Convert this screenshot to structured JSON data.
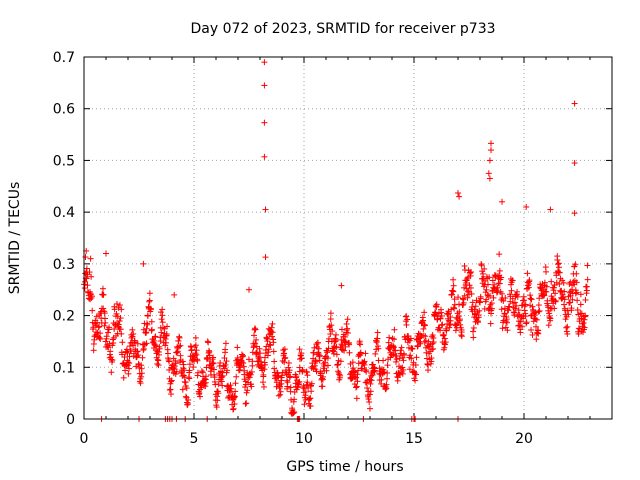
{
  "chart_data": {
    "type": "scatter",
    "title": "Day 072 of 2023, SRMTID for receiver p733",
    "xlabel": "GPS time / hours",
    "ylabel": "SRMTID / TECUs",
    "xlim": [
      0,
      24
    ],
    "ylim": [
      0,
      0.7
    ],
    "x_ticks": [
      0,
      5,
      10,
      15,
      20
    ],
    "y_ticks": [
      0,
      0.1,
      0.2,
      0.3,
      0.4,
      0.5,
      0.6,
      0.7
    ],
    "x_tick_labels": [
      "0",
      "5",
      "10",
      "15",
      "20"
    ],
    "y_tick_labels": [
      "0",
      "0.1",
      "0.2",
      "0.3",
      "0.4",
      "0.5",
      "0.6",
      "0.7"
    ],
    "grid": true,
    "marker": "plus",
    "color": "#ff0000",
    "trend": [
      {
        "x": 0.0,
        "y": 0.26
      },
      {
        "x": 0.5,
        "y": 0.2
      },
      {
        "x": 1.0,
        "y": 0.16
      },
      {
        "x": 1.5,
        "y": 0.17
      },
      {
        "x": 2.0,
        "y": 0.13
      },
      {
        "x": 2.5,
        "y": 0.12
      },
      {
        "x": 3.0,
        "y": 0.18
      },
      {
        "x": 3.5,
        "y": 0.15
      },
      {
        "x": 4.0,
        "y": 0.11
      },
      {
        "x": 4.5,
        "y": 0.09
      },
      {
        "x": 5.0,
        "y": 0.1
      },
      {
        "x": 5.5,
        "y": 0.09
      },
      {
        "x": 6.0,
        "y": 0.09
      },
      {
        "x": 6.5,
        "y": 0.07
      },
      {
        "x": 7.0,
        "y": 0.08
      },
      {
        "x": 7.5,
        "y": 0.1
      },
      {
        "x": 8.0,
        "y": 0.12
      },
      {
        "x": 8.5,
        "y": 0.13
      },
      {
        "x": 9.0,
        "y": 0.08
      },
      {
        "x": 9.5,
        "y": 0.06
      },
      {
        "x": 10.0,
        "y": 0.07
      },
      {
        "x": 10.5,
        "y": 0.09
      },
      {
        "x": 11.0,
        "y": 0.13
      },
      {
        "x": 11.5,
        "y": 0.14
      },
      {
        "x": 12.0,
        "y": 0.13
      },
      {
        "x": 12.5,
        "y": 0.09
      },
      {
        "x": 13.0,
        "y": 0.09
      },
      {
        "x": 13.5,
        "y": 0.1
      },
      {
        "x": 14.0,
        "y": 0.12
      },
      {
        "x": 14.5,
        "y": 0.13
      },
      {
        "x": 15.0,
        "y": 0.13
      },
      {
        "x": 15.5,
        "y": 0.15
      },
      {
        "x": 16.0,
        "y": 0.17
      },
      {
        "x": 16.5,
        "y": 0.19
      },
      {
        "x": 17.0,
        "y": 0.21
      },
      {
        "x": 17.5,
        "y": 0.24
      },
      {
        "x": 18.0,
        "y": 0.23
      },
      {
        "x": 18.5,
        "y": 0.26
      },
      {
        "x": 19.0,
        "y": 0.24
      },
      {
        "x": 19.5,
        "y": 0.21
      },
      {
        "x": 20.0,
        "y": 0.22
      },
      {
        "x": 20.5,
        "y": 0.21
      },
      {
        "x": 21.0,
        "y": 0.23
      },
      {
        "x": 21.5,
        "y": 0.25
      },
      {
        "x": 22.0,
        "y": 0.23
      },
      {
        "x": 22.5,
        "y": 0.22
      },
      {
        "x": 22.9,
        "y": 0.23
      }
    ],
    "spread": 0.05,
    "x_range_data": [
      0.0,
      22.9
    ],
    "outliers": [
      {
        "x": 8.2,
        "y": 0.69
      },
      {
        "x": 8.2,
        "y": 0.645
      },
      {
        "x": 8.2,
        "y": 0.573
      },
      {
        "x": 8.2,
        "y": 0.507
      },
      {
        "x": 8.25,
        "y": 0.405
      },
      {
        "x": 8.25,
        "y": 0.313
      },
      {
        "x": 22.3,
        "y": 0.61
      },
      {
        "x": 22.3,
        "y": 0.495
      },
      {
        "x": 22.3,
        "y": 0.398
      },
      {
        "x": 18.5,
        "y": 0.533
      },
      {
        "x": 18.5,
        "y": 0.52
      },
      {
        "x": 18.45,
        "y": 0.5
      },
      {
        "x": 18.4,
        "y": 0.475
      },
      {
        "x": 18.45,
        "y": 0.465
      },
      {
        "x": 17.0,
        "y": 0.437
      },
      {
        "x": 17.05,
        "y": 0.43
      },
      {
        "x": 19.0,
        "y": 0.42
      },
      {
        "x": 21.2,
        "y": 0.405
      },
      {
        "x": 20.1,
        "y": 0.41
      },
      {
        "x": 11.7,
        "y": 0.258
      },
      {
        "x": 2.7,
        "y": 0.3
      },
      {
        "x": 1.0,
        "y": 0.32
      },
      {
        "x": 0.1,
        "y": 0.325
      },
      {
        "x": 0.3,
        "y": 0.31
      },
      {
        "x": 4.1,
        "y": 0.24
      },
      {
        "x": 7.5,
        "y": 0.25
      },
      {
        "x": 9.8,
        "y": 0.135
      },
      {
        "x": 10.3,
        "y": 0.025
      },
      {
        "x": 13.0,
        "y": 0.02
      }
    ],
    "zero_points": [
      0.8,
      2.5,
      3.7,
      3.8,
      3.9,
      4.0,
      4.2,
      4.6,
      5.6,
      9.7,
      9.75,
      9.8,
      12.7,
      14.9,
      15.0,
      15.05,
      17.0
    ]
  }
}
